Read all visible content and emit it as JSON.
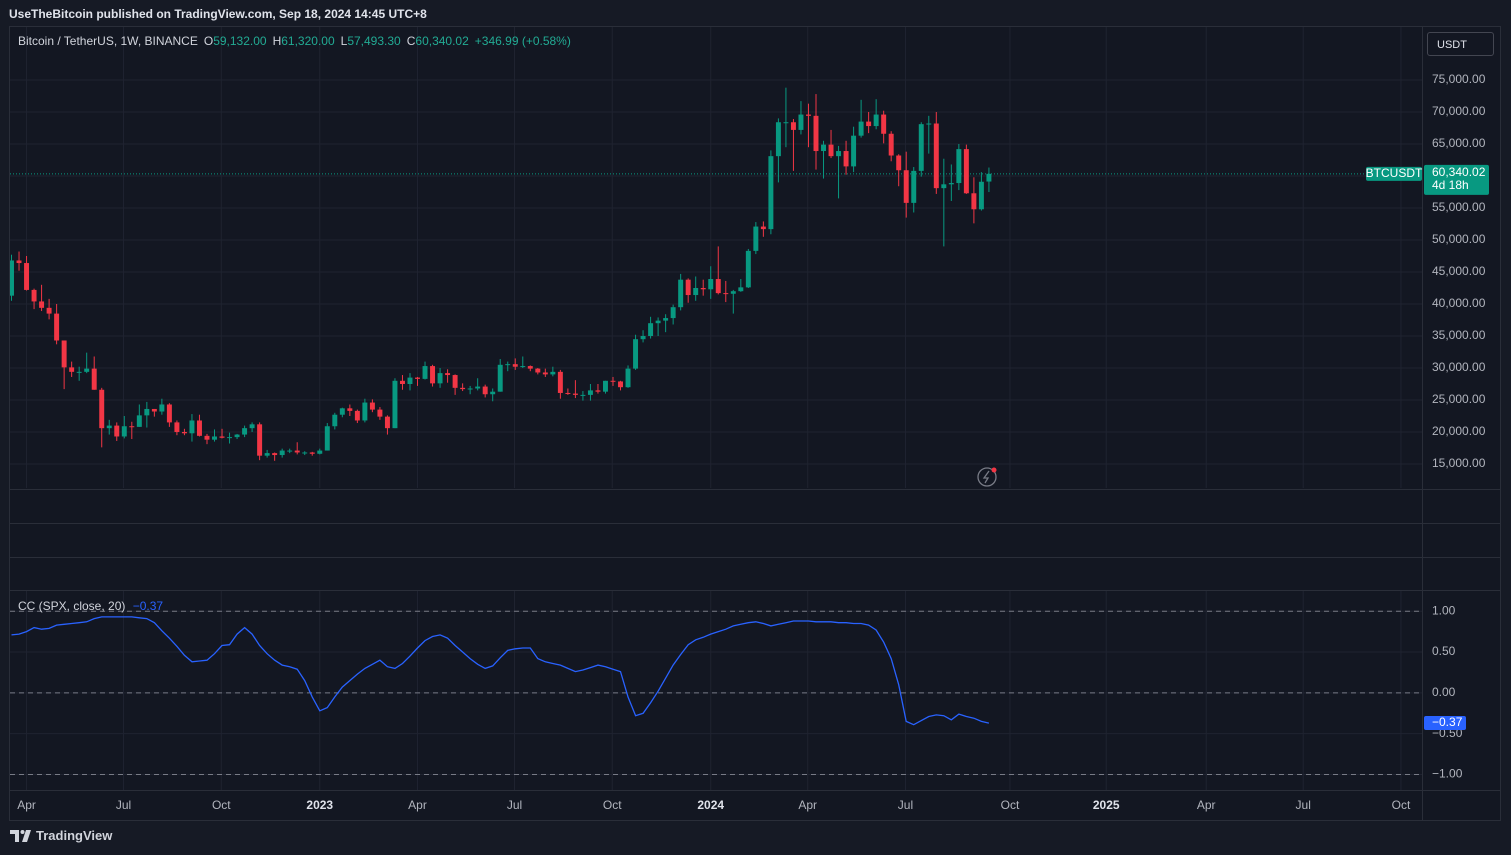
{
  "header": {
    "publisher": "UseTheBitcoin published on TradingView.com, Sep 18, 2024 14:45 UTC+8",
    "brand": "TradingView"
  },
  "chart_data": [
    {
      "type": "candlestick",
      "title": "Bitcoin / TetherUS, 1W, BINANCE",
      "legend": [
        [
          "O",
          "59,132.00"
        ],
        [
          "H",
          "61,320.00"
        ],
        [
          "L",
          "57,493.30"
        ],
        [
          "C",
          "60,340.02"
        ]
      ],
      "change": "+346.99 (+0.58%)",
      "currency": "USDT",
      "symbol": "BTCUSDT",
      "last_price_label": "60,340.02",
      "countdown": "4d 18h",
      "up_color": "#089981",
      "down_color": "#f23645",
      "open": [
        41300,
        46800,
        46400,
        42200,
        40400,
        39400,
        38500,
        34300,
        30100,
        29400,
        29400,
        29900,
        26600,
        20600,
        21000,
        19300,
        20900,
        20800,
        22600,
        23600,
        23200,
        24300,
        21500,
        20000,
        19800,
        21800,
        19400,
        18800,
        19300,
        19100,
        19200,
        19600,
        20600,
        21200,
        16300,
        16700,
        16400,
        17100,
        17100,
        16800,
        16800,
        16600,
        17100,
        20900,
        22700,
        23700,
        23300,
        21800,
        24600,
        23500,
        22400,
        20600,
        28000,
        27500,
        28500,
        28300,
        30300,
        27600,
        29200,
        28900,
        26900,
        26700,
        26800,
        27100,
        25900,
        26300,
        30500,
        30600,
        30200,
        30300,
        29900,
        29300,
        29000,
        29400,
        26100,
        26000,
        25800,
        25800,
        26500,
        26300,
        28000,
        27900,
        27000,
        29900,
        34500,
        35000,
        37000,
        37400,
        37800,
        39500,
        43800,
        41400,
        42500,
        42300,
        43900,
        41700,
        41600,
        42000,
        42600,
        48300,
        52100,
        51700,
        63100,
        68400,
        68400,
        67200,
        69600,
        69400,
        63900,
        64900,
        63100,
        63900,
        61500,
        66300,
        68500,
        67800,
        69600,
        66600,
        63200,
        60900,
        55800,
        60800,
        68100,
        68200,
        58100,
        58700,
        58900,
        64200,
        57300,
        54800,
        59132
      ],
      "high": [
        47700,
        48200,
        47500,
        42400,
        43000,
        40800,
        40000,
        34300,
        31000,
        30200,
        32400,
        31800,
        26900,
        21900,
        21500,
        22500,
        21600,
        24300,
        24700,
        23600,
        25200,
        24500,
        21800,
        20500,
        22800,
        22700,
        19700,
        20400,
        20500,
        19900,
        19700,
        21000,
        21500,
        21500,
        17200,
        16800,
        17400,
        17400,
        18400,
        17000,
        16900,
        17400,
        21400,
        23000,
        23800,
        24300,
        23500,
        25200,
        25100,
        23900,
        22600,
        28400,
        28900,
        29200,
        28600,
        31000,
        30500,
        30000,
        29800,
        29000,
        27600,
        27200,
        28400,
        27400,
        26800,
        31400,
        31000,
        31500,
        31800,
        30400,
        30000,
        29900,
        30200,
        29700,
        26800,
        28100,
        26400,
        27500,
        27500,
        28000,
        28600,
        28000,
        30400,
        35200,
        35900,
        38000,
        37900,
        38400,
        39900,
        44700,
        44000,
        44300,
        43800,
        45900,
        49000,
        43600,
        42200,
        43900,
        48600,
        52800,
        52900,
        64000,
        69000,
        73800,
        68900,
        71700,
        71300,
        72800,
        65500,
        67200,
        64700,
        65500,
        67700,
        71900,
        70000,
        72000,
        70200,
        67000,
        63400,
        63800,
        61400,
        68400,
        69400,
        70000,
        62700,
        61800,
        65000,
        64900,
        59800,
        60600,
        61320
      ],
      "low": [
        40500,
        45200,
        42100,
        39200,
        38900,
        37600,
        33700,
        26700,
        28600,
        28000,
        29200,
        26600,
        17600,
        19600,
        18600,
        19000,
        18900,
        20800,
        20700,
        22400,
        22700,
        20800,
        19500,
        19500,
        18500,
        19300,
        18100,
        18500,
        19000,
        18200,
        18900,
        19200,
        20000,
        15600,
        16000,
        15500,
        16000,
        16700,
        16500,
        16400,
        16300,
        16500,
        17100,
        20400,
        22300,
        22500,
        21400,
        21500,
        23100,
        21900,
        19600,
        20600,
        26600,
        26500,
        27200,
        28200,
        27100,
        26900,
        27700,
        25800,
        26400,
        25900,
        26500,
        25400,
        24800,
        26300,
        29500,
        29700,
        30000,
        29500,
        29000,
        28600,
        28700,
        25200,
        25800,
        25300,
        24900,
        24900,
        26000,
        26000,
        27200,
        26500,
        26900,
        29700,
        34000,
        34600,
        35000,
        35600,
        36800,
        39000,
        40200,
        40500,
        41300,
        40800,
        41500,
        40300,
        38500,
        41900,
        42500,
        47800,
        50500,
        50900,
        59000,
        64500,
        60800,
        66500,
        64500,
        61000,
        59600,
        62800,
        56500,
        60200,
        60600,
        66000,
        66700,
        67300,
        65100,
        62300,
        58400,
        53500,
        54300,
        59900,
        63500,
        57200,
        49000,
        56100,
        57800,
        57200,
        52600,
        54600,
        57493.3
      ],
      "close": [
        46800,
        46400,
        42200,
        40400,
        39400,
        38500,
        34300,
        30100,
        29400,
        29400,
        29900,
        26600,
        20600,
        21000,
        19300,
        20900,
        20800,
        22600,
        23600,
        23200,
        24300,
        21500,
        20000,
        19800,
        21800,
        19400,
        18800,
        19300,
        19100,
        19200,
        19600,
        20600,
        21200,
        16300,
        16700,
        16400,
        17100,
        17100,
        16800,
        16800,
        16600,
        17100,
        20900,
        22700,
        23700,
        23300,
        21800,
        24600,
        23500,
        22400,
        20600,
        28000,
        27500,
        28500,
        28300,
        30300,
        27600,
        29200,
        28900,
        26900,
        26700,
        26800,
        27100,
        25900,
        26300,
        30500,
        30600,
        30200,
        30300,
        29900,
        29300,
        29000,
        29400,
        26100,
        26000,
        25800,
        25800,
        26500,
        26300,
        28000,
        27900,
        27000,
        29900,
        34500,
        35000,
        37000,
        37400,
        37800,
        39500,
        43800,
        41400,
        42500,
        42300,
        43900,
        41700,
        41600,
        42000,
        42600,
        48300,
        52100,
        51700,
        63100,
        68400,
        68400,
        67200,
        69600,
        69400,
        63900,
        64900,
        63100,
        63900,
        61500,
        66300,
        68500,
        67800,
        69600,
        66600,
        63200,
        60900,
        55800,
        60800,
        68100,
        68200,
        58100,
        58700,
        58900,
        64200,
        57300,
        54800,
        59100,
        60340.02
      ],
      "xlim": [
        -0.2,
        187.6
      ],
      "ylim": [
        11250,
        83280
      ],
      "yticks": [
        {
          "value": 75000,
          "label": "75,000.00"
        },
        {
          "value": 70000,
          "label": "70,000.00"
        },
        {
          "value": 65000,
          "label": "65,000.00"
        },
        {
          "value": 60000,
          "label": "60,000.00"
        },
        {
          "value": 55000,
          "label": "55,000.00"
        },
        {
          "value": 50000,
          "label": "50,000.00"
        },
        {
          "value": 45000,
          "label": "45,000.00"
        },
        {
          "value": 40000,
          "label": "40,000.00"
        },
        {
          "value": 35000,
          "label": "35,000.00"
        },
        {
          "value": 30000,
          "label": "30,000.00"
        },
        {
          "value": 25000,
          "label": "25,000.00"
        },
        {
          "value": 20000,
          "label": "20,000.00"
        },
        {
          "value": 15000,
          "label": "15,000.00"
        }
      ],
      "grid": true
    },
    {
      "type": "line",
      "last_label": "−0.37",
      "series": [
        {
          "name": "CC (SPX, close, 20)",
          "color": "#2962ff",
          "values": [
            0.71,
            0.72,
            0.75,
            0.8,
            0.78,
            0.79,
            0.83,
            0.84,
            0.85,
            0.86,
            0.87,
            0.91,
            0.93,
            0.93,
            0.93,
            0.93,
            0.93,
            0.92,
            0.91,
            0.86,
            0.76,
            0.67,
            0.57,
            0.46,
            0.38,
            0.39,
            0.4,
            0.48,
            0.58,
            0.59,
            0.72,
            0.8,
            0.72,
            0.58,
            0.48,
            0.4,
            0.34,
            0.32,
            0.29,
            0.15,
            -0.05,
            -0.22,
            -0.18,
            -0.05,
            0.07,
            0.15,
            0.23,
            0.3,
            0.35,
            0.4,
            0.32,
            0.3,
            0.36,
            0.45,
            0.55,
            0.64,
            0.69,
            0.71,
            0.67,
            0.58,
            0.5,
            0.42,
            0.35,
            0.3,
            0.33,
            0.43,
            0.52,
            0.54,
            0.55,
            0.55,
            0.42,
            0.38,
            0.36,
            0.34,
            0.3,
            0.26,
            0.28,
            0.31,
            0.34,
            0.32,
            0.29,
            0.26,
            -0.05,
            -0.28,
            -0.25,
            -0.12,
            0.02,
            0.18,
            0.34,
            0.47,
            0.59,
            0.65,
            0.68,
            0.72,
            0.75,
            0.78,
            0.82,
            0.84,
            0.86,
            0.87,
            0.85,
            0.82,
            0.84,
            0.86,
            0.88,
            0.88,
            0.88,
            0.87,
            0.87,
            0.87,
            0.86,
            0.86,
            0.85,
            0.85,
            0.83,
            0.77,
            0.62,
            0.42,
            0.1,
            -0.35,
            -0.39,
            -0.34,
            -0.29,
            -0.27,
            -0.28,
            -0.33,
            -0.26,
            -0.29,
            -0.31,
            -0.35,
            -0.37
          ]
        }
      ],
      "xlim": [
        -0.2,
        187.6
      ],
      "xticks": [
        {
          "value": 2,
          "label": "Apr"
        },
        {
          "value": 14.9,
          "label": "Jul"
        },
        {
          "value": 27.9,
          "label": "Oct"
        },
        {
          "value": 41,
          "label": "2023"
        },
        {
          "value": 54,
          "label": "Apr"
        },
        {
          "value": 66.9,
          "label": "Jul"
        },
        {
          "value": 79.9,
          "label": "Oct"
        },
        {
          "value": 93,
          "label": "2024"
        },
        {
          "value": 105.9,
          "label": "Apr"
        },
        {
          "value": 118.9,
          "label": "Jul"
        },
        {
          "value": 132.8,
          "label": "Oct"
        },
        {
          "value": 145.6,
          "label": "2025"
        },
        {
          "value": 158.9,
          "label": "Apr"
        },
        {
          "value": 171.8,
          "label": "Jul"
        },
        {
          "value": 184.8,
          "label": "Oct"
        }
      ],
      "ylim": [
        -1.19,
        1.26
      ],
      "yticks": [
        {
          "value": 1,
          "label": "1.00"
        },
        {
          "value": 0.5,
          "label": "0.50"
        },
        {
          "value": 0,
          "label": "0.00"
        },
        {
          "value": -0.5,
          "label": "−0.50"
        },
        {
          "value": -1,
          "label": "−1.00"
        }
      ],
      "levels": [
        1,
        0,
        -1
      ],
      "grid": true
    }
  ]
}
